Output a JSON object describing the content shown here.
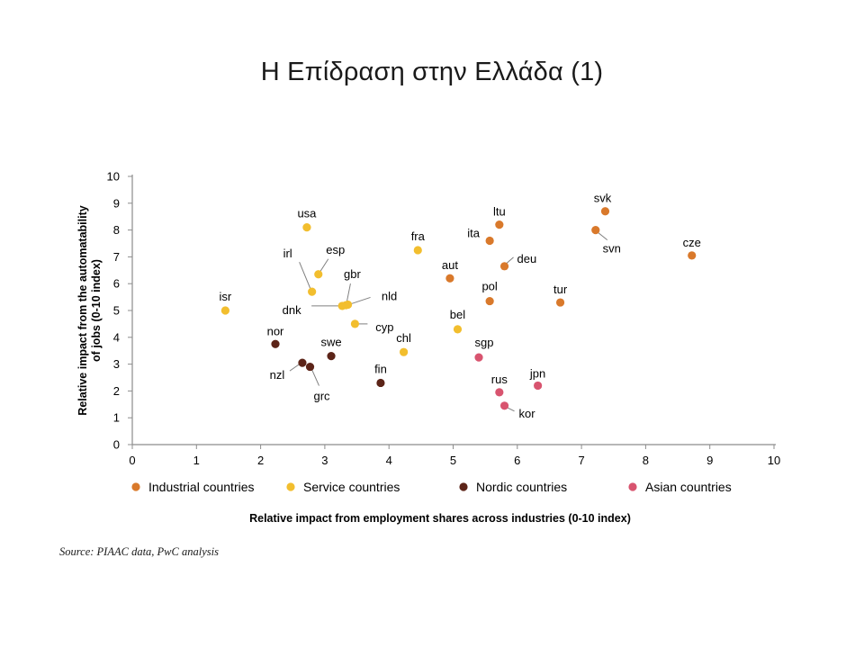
{
  "slide": {
    "title": "Η Επίδραση στην Ελλάδα (1)",
    "source": "Source: PIAAC data, PwC analysis"
  },
  "chart_data": {
    "type": "scatter",
    "xlabel": "Relative impact from employment shares across industries (0-10 index)",
    "ylabel": "Relative impact from the automatability of jobs (0-10 index)",
    "xlim": [
      0,
      10
    ],
    "ylim": [
      0,
      10
    ],
    "x_ticks": [
      "0",
      "1",
      "2",
      "3",
      "4",
      "5",
      "6",
      "7",
      "8",
      "9",
      "10"
    ],
    "y_ticks": [
      "0",
      "1",
      "2",
      "3",
      "4",
      "5",
      "6",
      "7",
      "8",
      "9",
      "10"
    ],
    "grid": false,
    "legend_position": "bottom",
    "series": [
      {
        "name": "Industrial countries",
        "color": "#d9792b",
        "points": [
          {
            "label": "ltu",
            "x": 5.72,
            "y": 8.2
          },
          {
            "label": "ita",
            "x": 5.57,
            "y": 7.6
          },
          {
            "label": "aut",
            "x": 4.95,
            "y": 6.2
          },
          {
            "label": "deu",
            "x": 5.8,
            "y": 6.65
          },
          {
            "label": "pol",
            "x": 5.57,
            "y": 5.35
          },
          {
            "label": "tur",
            "x": 6.67,
            "y": 5.3
          },
          {
            "label": "svk",
            "x": 7.37,
            "y": 8.7
          },
          {
            "label": "svn",
            "x": 7.22,
            "y": 8.0
          },
          {
            "label": "cze",
            "x": 8.72,
            "y": 7.05
          }
        ]
      },
      {
        "name": "Service countries",
        "color": "#f2be2e",
        "points": [
          {
            "label": "usa",
            "x": 2.72,
            "y": 8.1
          },
          {
            "label": "esp",
            "x": 2.9,
            "y": 6.35
          },
          {
            "label": "irl",
            "x": 2.8,
            "y": 5.7
          },
          {
            "label": "gbr",
            "x": 3.33,
            "y": 5.2
          },
          {
            "label": "nld",
            "x": 3.36,
            "y": 5.22
          },
          {
            "label": "dnk",
            "x": 3.27,
            "y": 5.17
          },
          {
            "label": "cyp",
            "x": 3.47,
            "y": 4.5
          },
          {
            "label": "isr",
            "x": 1.45,
            "y": 5.0
          },
          {
            "label": "fra",
            "x": 4.45,
            "y": 7.25
          },
          {
            "label": "chl",
            "x": 4.23,
            "y": 3.45
          },
          {
            "label": "bel",
            "x": 5.07,
            "y": 4.3
          }
        ]
      },
      {
        "name": "Nordic countries",
        "color": "#5c2418",
        "points": [
          {
            "label": "nor",
            "x": 2.23,
            "y": 3.75
          },
          {
            "label": "nzl",
            "x": 2.65,
            "y": 3.05
          },
          {
            "label": "grc",
            "x": 2.77,
            "y": 2.9
          },
          {
            "label": "swe",
            "x": 3.1,
            "y": 3.3
          },
          {
            "label": "fin",
            "x": 3.87,
            "y": 2.3
          }
        ]
      },
      {
        "name": "Asian countries",
        "color": "#d8546f",
        "points": [
          {
            "label": "sgp",
            "x": 5.4,
            "y": 3.25
          },
          {
            "label": "rus",
            "x": 5.72,
            "y": 1.95
          },
          {
            "label": "kor",
            "x": 5.8,
            "y": 1.45
          },
          {
            "label": "jpn",
            "x": 6.32,
            "y": 2.2
          }
        ]
      }
    ]
  }
}
